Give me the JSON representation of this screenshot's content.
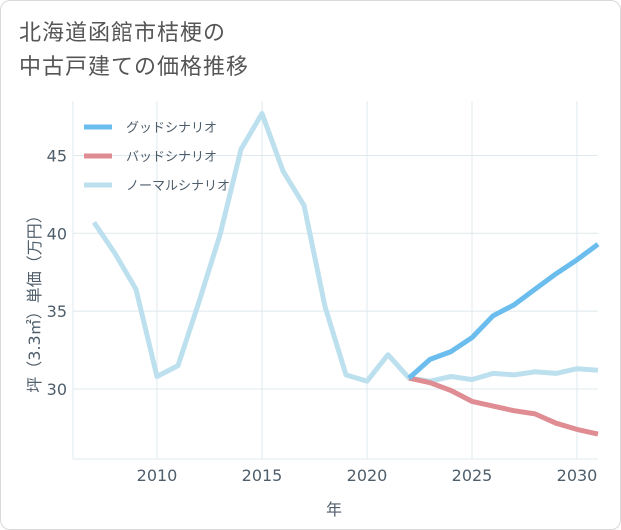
{
  "title": {
    "line1": "北海道函館市桔梗の",
    "line2": "中古戸建ての価格推移"
  },
  "colors": {
    "good": "#6bbdee",
    "bad": "#df8c92",
    "normal": "#bde0ee",
    "grid": "#dfe8ec",
    "axis_text": "#4f5e6b"
  },
  "chart_data": {
    "type": "line",
    "xlabel": "年",
    "ylabel": "坪（3.3㎡）単価（万円）",
    "xlim": [
      2006,
      2031
    ],
    "ylim": [
      25.5,
      48.5
    ],
    "xticks": [
      2010,
      2015,
      2020,
      2025,
      2030
    ],
    "yticks": [
      30,
      35,
      40,
      45
    ],
    "grid": true,
    "legend_position": "top-left",
    "series": [
      {
        "name": "グッドシナリオ",
        "color_key": "good",
        "x": [
          2022,
          2023,
          2024,
          2025,
          2026,
          2027,
          2028,
          2029,
          2030,
          2031
        ],
        "y": [
          30.7,
          31.9,
          32.4,
          33.3,
          34.7,
          35.4,
          36.4,
          37.4,
          38.3,
          39.3
        ]
      },
      {
        "name": "バッドシナリオ",
        "color_key": "bad",
        "x": [
          2022,
          2023,
          2024,
          2025,
          2026,
          2027,
          2028,
          2029,
          2030,
          2031
        ],
        "y": [
          30.7,
          30.4,
          29.9,
          29.2,
          28.9,
          28.6,
          28.4,
          27.8,
          27.4,
          27.1
        ]
      },
      {
        "name": "ノーマルシナリオ",
        "color_key": "normal",
        "x": [
          2007,
          2008,
          2009,
          2010,
          2011,
          2012,
          2013,
          2014,
          2015,
          2016,
          2017,
          2018,
          2019,
          2020,
          2021,
          2022,
          2023,
          2024,
          2025,
          2026,
          2027,
          2028,
          2029,
          2030,
          2031
        ],
        "y": [
          40.7,
          38.7,
          36.4,
          30.8,
          31.5,
          35.6,
          39.9,
          45.4,
          47.7,
          44.0,
          41.8,
          35.3,
          30.9,
          30.5,
          32.2,
          30.7,
          30.5,
          30.8,
          30.6,
          31.0,
          30.9,
          31.1,
          31.0,
          31.3,
          31.2
        ]
      }
    ]
  }
}
